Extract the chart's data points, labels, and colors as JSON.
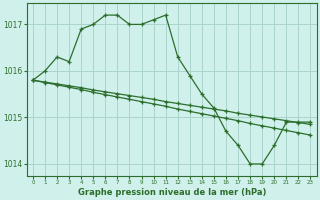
{
  "xlabel": "Graphe pression niveau de la mer (hPa)",
  "background_color": "#cff0eb",
  "grid_color": "#aad4cc",
  "line_color": "#2d6e2d",
  "hours": [
    0,
    1,
    2,
    3,
    4,
    5,
    6,
    7,
    8,
    9,
    10,
    11,
    12,
    13,
    14,
    15,
    16,
    17,
    18,
    19,
    20,
    21,
    22,
    23
  ],
  "line1": [
    1015.8,
    1016.0,
    1016.3,
    1016.2,
    1016.9,
    1017.0,
    1017.2,
    1017.2,
    1017.0,
    1017.0,
    1017.1,
    1017.2,
    1016.3,
    1015.9,
    1015.5,
    1015.2,
    1014.7,
    1014.4,
    1014.0,
    1014.0,
    1014.4,
    1014.9,
    1014.9,
    1014.9
  ],
  "line2": [
    1015.8,
    1015.76,
    1015.72,
    1015.68,
    1015.64,
    1015.59,
    1015.55,
    1015.51,
    1015.47,
    1015.43,
    1015.39,
    1015.34,
    1015.3,
    1015.26,
    1015.22,
    1015.18,
    1015.14,
    1015.09,
    1015.05,
    1015.01,
    1014.97,
    1014.93,
    1014.89,
    1014.85
  ],
  "line3": [
    1015.8,
    1015.75,
    1015.7,
    1015.65,
    1015.6,
    1015.54,
    1015.49,
    1015.44,
    1015.39,
    1015.34,
    1015.29,
    1015.24,
    1015.18,
    1015.13,
    1015.08,
    1015.03,
    1014.98,
    1014.93,
    1014.87,
    1014.82,
    1014.77,
    1014.72,
    1014.67,
    1014.62
  ],
  "ylim": [
    1013.75,
    1017.45
  ],
  "yticks": [
    1014,
    1015,
    1016,
    1017
  ],
  "marker": "+"
}
